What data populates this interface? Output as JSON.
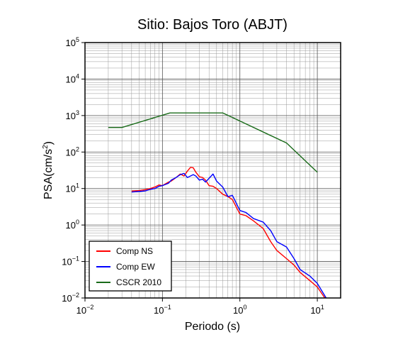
{
  "chart_data": {
    "type": "line",
    "title": "Sitio: Bajos Toro (ABJT)",
    "xlabel": "Periodo (s)",
    "ylabel_base": "PSA(cm/s",
    "ylabel_exp": "2",
    "ylabel_close": ")",
    "xscale": "log",
    "yscale": "log",
    "xlim": [
      0.01,
      20
    ],
    "ylim": [
      0.01,
      100000
    ],
    "x_ticks": [
      {
        "base": "10",
        "exp": "−2"
      },
      {
        "base": "10",
        "exp": "−1"
      },
      {
        "base": "10",
        "exp": "0"
      },
      {
        "base": "10",
        "exp": "1"
      }
    ],
    "y_ticks": [
      {
        "base": "10",
        "exp": "−2"
      },
      {
        "base": "10",
        "exp": "−1"
      },
      {
        "base": "10",
        "exp": "0"
      },
      {
        "base": "10",
        "exp": "1"
      },
      {
        "base": "10",
        "exp": "2"
      },
      {
        "base": "10",
        "exp": "3"
      },
      {
        "base": "10",
        "exp": "4"
      },
      {
        "base": "10",
        "exp": "5"
      }
    ],
    "grid": true,
    "legend_position": "bottom-left",
    "series": [
      {
        "name": "Comp NS",
        "color": "#ff0000",
        "x": [
          0.04,
          0.05,
          0.06,
          0.07,
          0.08,
          0.09,
          0.1,
          0.11,
          0.12,
          0.13,
          0.15,
          0.17,
          0.19,
          0.21,
          0.23,
          0.25,
          0.27,
          0.3,
          0.33,
          0.36,
          0.4,
          0.45,
          0.5,
          0.6,
          0.7,
          0.8,
          1.0,
          1.2,
          1.5,
          2.0,
          2.5,
          3.0,
          4.0,
          5.0,
          6.0,
          8.0,
          10.0,
          12.5
        ],
        "y": [
          8.5,
          8.8,
          9.3,
          10.0,
          11.0,
          12.5,
          12.0,
          13.5,
          15.0,
          16.0,
          20.0,
          25.0,
          22.0,
          30.0,
          38.0,
          37.0,
          28.0,
          21.0,
          20.0,
          17.0,
          12.0,
          11.5,
          10.0,
          7.0,
          6.0,
          5.0,
          2.0,
          1.8,
          1.3,
          0.8,
          0.35,
          0.2,
          0.12,
          0.08,
          0.05,
          0.03,
          0.02,
          0.01
        ]
      },
      {
        "name": "Comp EW",
        "color": "#0000ff",
        "x": [
          0.04,
          0.05,
          0.06,
          0.07,
          0.08,
          0.09,
          0.1,
          0.11,
          0.12,
          0.13,
          0.15,
          0.17,
          0.19,
          0.21,
          0.23,
          0.25,
          0.27,
          0.3,
          0.33,
          0.36,
          0.4,
          0.45,
          0.5,
          0.6,
          0.7,
          0.8,
          1.0,
          1.2,
          1.5,
          2.0,
          2.5,
          3.0,
          4.0,
          5.0,
          6.0,
          8.0,
          10.0,
          13.0
        ],
        "y": [
          8.0,
          8.3,
          8.6,
          9.5,
          10.0,
          11.5,
          12.0,
          13.0,
          14.0,
          17.0,
          20.0,
          24.0,
          26.0,
          20.0,
          22.0,
          24.0,
          22.0,
          17.0,
          18.0,
          15.0,
          19.0,
          25.0,
          16.0,
          11.0,
          6.0,
          6.5,
          2.5,
          2.2,
          1.5,
          1.2,
          0.7,
          0.35,
          0.25,
          0.12,
          0.06,
          0.04,
          0.025,
          0.01
        ]
      },
      {
        "name": "CSCR 2010",
        "color": "#1a6b1a",
        "x": [
          0.02,
          0.03,
          0.125,
          0.6,
          4.0,
          10.0
        ],
        "y": [
          470,
          470,
          1180,
          1180,
          177,
          28
        ]
      }
    ]
  }
}
